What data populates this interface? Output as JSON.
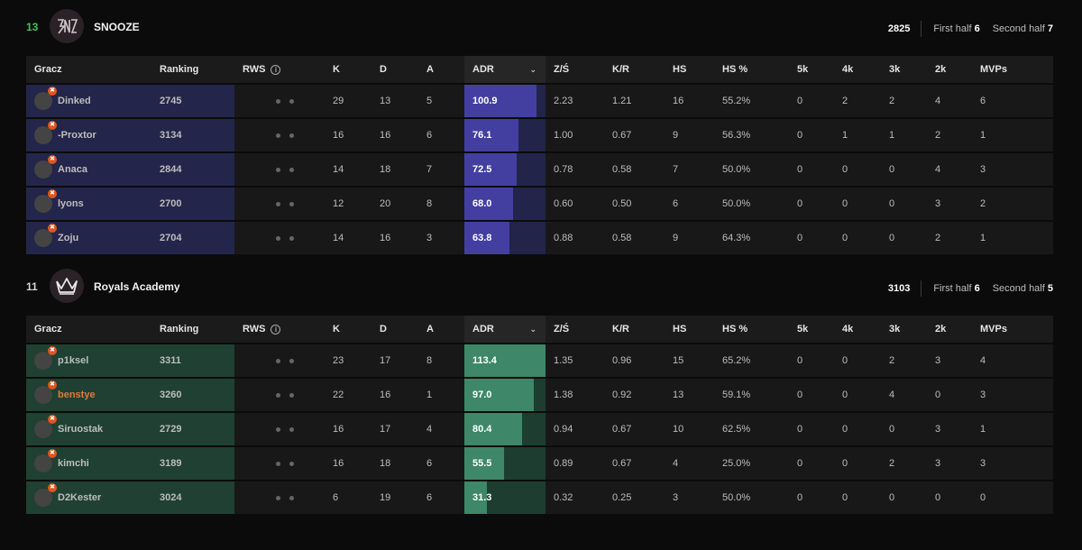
{
  "columns": [
    "Gracz",
    "Ranking",
    "RWS",
    "K",
    "D",
    "A",
    "ADR",
    "Z/Ś",
    "K/R",
    "HS",
    "HS %",
    "5k",
    "4k",
    "3k",
    "2k",
    "MVPs"
  ],
  "teams": [
    {
      "score": "13",
      "score_color": "#3fc45b",
      "name": "SNOOZE",
      "logo_icon": "snooze-logo-icon",
      "rating": "2825",
      "first_half_label": "First half",
      "first_half": "6",
      "second_half_label": "Second half",
      "second_half": "7",
      "players": [
        {
          "name": "Dinked",
          "ranking": "2745",
          "k": "29",
          "d": "13",
          "a": "5",
          "adr": "100.9",
          "adr_fill": 0.89,
          "zs": "2.23",
          "kr": "1.21",
          "hs": "16",
          "hsp": "55.2%",
          "k5": "0",
          "k4": "2",
          "k3": "2",
          "k2": "4",
          "mvps": "6"
        },
        {
          "name": "-Proxtor",
          "ranking": "3134",
          "k": "16",
          "d": "16",
          "a": "6",
          "adr": "76.1",
          "adr_fill": 0.67,
          "zs": "1.00",
          "kr": "0.67",
          "hs": "9",
          "hsp": "56.3%",
          "k5": "0",
          "k4": "1",
          "k3": "1",
          "k2": "2",
          "mvps": "1"
        },
        {
          "name": "Anaca",
          "ranking": "2844",
          "k": "14",
          "d": "18",
          "a": "7",
          "adr": "72.5",
          "adr_fill": 0.64,
          "zs": "0.78",
          "kr": "0.58",
          "hs": "7",
          "hsp": "50.0%",
          "k5": "0",
          "k4": "0",
          "k3": "0",
          "k2": "4",
          "mvps": "3"
        },
        {
          "name": "lyons",
          "ranking": "2700",
          "k": "12",
          "d": "20",
          "a": "8",
          "adr": "68.0",
          "adr_fill": 0.6,
          "zs": "0.60",
          "kr": "0.50",
          "hs": "6",
          "hsp": "50.0%",
          "k5": "0",
          "k4": "0",
          "k3": "0",
          "k2": "3",
          "mvps": "2"
        },
        {
          "name": "Zoju",
          "ranking": "2704",
          "k": "14",
          "d": "16",
          "a": "3",
          "adr": "63.8",
          "adr_fill": 0.56,
          "zs": "0.88",
          "kr": "0.58",
          "hs": "9",
          "hsp": "64.3%",
          "k5": "0",
          "k4": "0",
          "k3": "0",
          "k2": "2",
          "mvps": "1"
        }
      ]
    },
    {
      "score": "11",
      "score_color": "#d4d4d4",
      "name": "Royals Academy",
      "logo_icon": "crown-logo-icon",
      "rating": "3103",
      "first_half_label": "First half",
      "first_half": "6",
      "second_half_label": "Second half",
      "second_half": "5",
      "players": [
        {
          "name": "p1ksel",
          "ranking": "3311",
          "k": "23",
          "d": "17",
          "a": "8",
          "adr": "113.4",
          "adr_fill": 1.0,
          "zs": "1.35",
          "kr": "0.96",
          "hs": "15",
          "hsp": "65.2%",
          "k5": "0",
          "k4": "0",
          "k3": "2",
          "k2": "3",
          "mvps": "4"
        },
        {
          "name": "benstye",
          "highlight": true,
          "ranking": "3260",
          "k": "22",
          "d": "16",
          "a": "1",
          "adr": "97.0",
          "adr_fill": 0.86,
          "zs": "1.38",
          "kr": "0.92",
          "hs": "13",
          "hsp": "59.1%",
          "k5": "0",
          "k4": "0",
          "k3": "4",
          "k2": "0",
          "mvps": "3"
        },
        {
          "name": "Siruostak",
          "ranking": "2729",
          "k": "16",
          "d": "17",
          "a": "4",
          "adr": "80.4",
          "adr_fill": 0.71,
          "zs": "0.94",
          "kr": "0.67",
          "hs": "10",
          "hsp": "62.5%",
          "k5": "0",
          "k4": "0",
          "k3": "0",
          "k2": "3",
          "mvps": "1"
        },
        {
          "name": "kimchi",
          "ranking": "3189",
          "k": "16",
          "d": "18",
          "a": "6",
          "adr": "55.5",
          "adr_fill": 0.49,
          "zs": "0.89",
          "kr": "0.67",
          "hs": "4",
          "hsp": "25.0%",
          "k5": "0",
          "k4": "0",
          "k3": "2",
          "k2": "3",
          "mvps": "3"
        },
        {
          "name": "D2Kester",
          "ranking": "3024",
          "k": "6",
          "d": "19",
          "a": "6",
          "adr": "31.3",
          "adr_fill": 0.28,
          "zs": "0.32",
          "kr": "0.25",
          "hs": "3",
          "hsp": "50.0%",
          "k5": "0",
          "k4": "0",
          "k3": "0",
          "k2": "0",
          "mvps": "0"
        }
      ]
    }
  ]
}
